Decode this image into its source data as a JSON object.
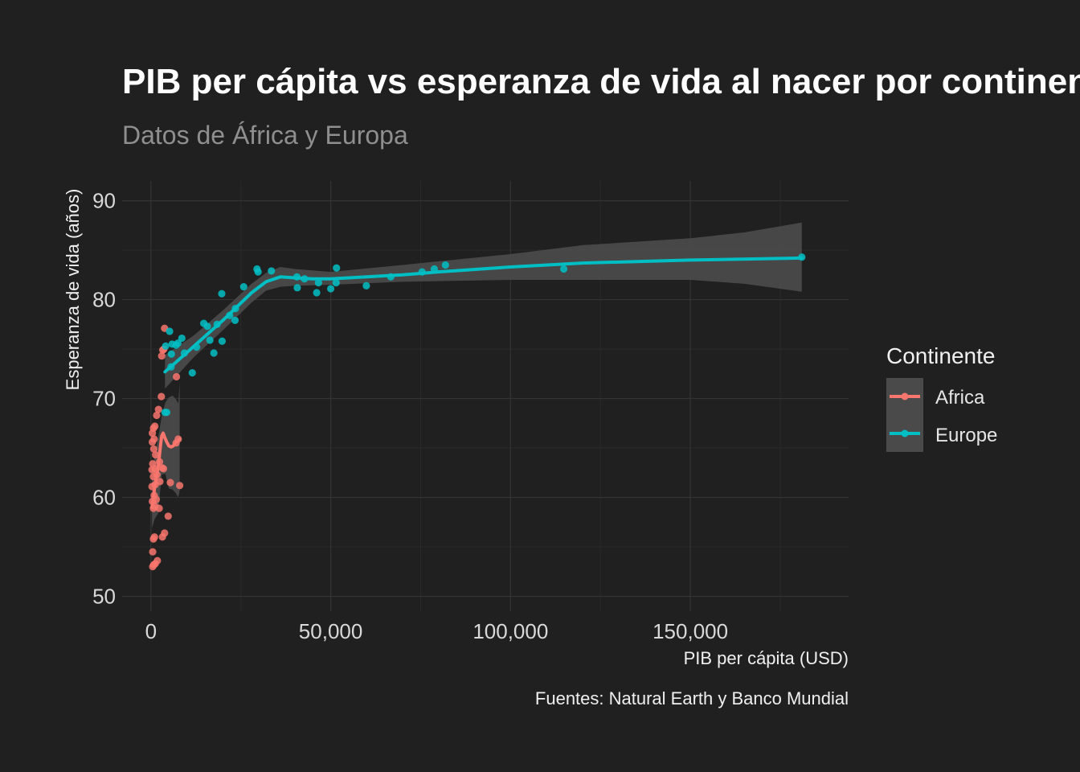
{
  "chart_data": {
    "type": "scatter",
    "title": "PIB per cápita vs esperanza de vida al nacer por continente",
    "subtitle": "Datos de África y Europa",
    "xlabel": "PIB per cápita  (USD)",
    "ylabel": "Esperanza de vida (años)",
    "caption": "Fuentes: Natural Earth y Banco Mundial",
    "xlim": [
      -8000,
      194000
    ],
    "ylim": [
      48.5,
      92
    ],
    "x_ticks": [
      0,
      50000,
      100000,
      150000
    ],
    "x_tick_labels": [
      "0",
      "50,000",
      "100,000",
      "150,000"
    ],
    "y_ticks": [
      50,
      60,
      70,
      80,
      90
    ],
    "y_tick_labels": [
      "50",
      "60",
      "70",
      "80",
      "90"
    ],
    "grid": true,
    "legend": {
      "title": "Continente",
      "position": "right",
      "entries": [
        "Africa",
        "Europe"
      ]
    },
    "series": [
      {
        "name": "Africa",
        "color": "#f8766d",
        "points": [
          [
            500,
            53.0
          ],
          [
            800,
            53.2
          ],
          [
            1200,
            53.3
          ],
          [
            1800,
            53.6
          ],
          [
            500,
            54.5
          ],
          [
            700,
            55.8
          ],
          [
            1000,
            56.0
          ],
          [
            3200,
            56.0
          ],
          [
            3800,
            56.4
          ],
          [
            4800,
            58.1
          ],
          [
            700,
            58.9
          ],
          [
            1100,
            59.1
          ],
          [
            2300,
            58.9
          ],
          [
            400,
            59.6
          ],
          [
            1500,
            59.8
          ],
          [
            900,
            60.2
          ],
          [
            300,
            61.1
          ],
          [
            1200,
            61.3
          ],
          [
            2500,
            61.6
          ],
          [
            700,
            62.1
          ],
          [
            5400,
            61.5
          ],
          [
            8000,
            61.2
          ],
          [
            1700,
            62.3
          ],
          [
            300,
            62.8
          ],
          [
            1100,
            62.9
          ],
          [
            3100,
            63.0
          ],
          [
            3500,
            62.9
          ],
          [
            500,
            63.4
          ],
          [
            2400,
            63.6
          ],
          [
            1300,
            64.3
          ],
          [
            800,
            64.9
          ],
          [
            400,
            65.6
          ],
          [
            7000,
            65.5
          ],
          [
            900,
            65.9
          ],
          [
            7600,
            65.9
          ],
          [
            400,
            66.5
          ],
          [
            1100,
            67.2
          ],
          [
            700,
            67.0
          ],
          [
            1600,
            68.3
          ],
          [
            2100,
            68.9
          ],
          [
            2900,
            70.2
          ],
          [
            3000,
            74.3
          ],
          [
            3300,
            74.9
          ],
          [
            3600,
            75.0
          ],
          [
            3800,
            77.1
          ],
          [
            7100,
            72.2
          ]
        ]
      },
      {
        "name": "Europe",
        "color": "#00bfc4",
        "points": [
          [
            3900,
            68.6
          ],
          [
            4400,
            68.6
          ],
          [
            5600,
            73.2
          ],
          [
            4100,
            75.3
          ],
          [
            5200,
            76.8
          ],
          [
            5900,
            75.5
          ],
          [
            7000,
            75.4
          ],
          [
            8600,
            76.1
          ],
          [
            7500,
            75.6
          ],
          [
            5700,
            74.5
          ],
          [
            9300,
            74.6
          ],
          [
            11500,
            72.6
          ],
          [
            12700,
            75.2
          ],
          [
            14700,
            77.6
          ],
          [
            15700,
            77.3
          ],
          [
            16400,
            75.9
          ],
          [
            17500,
            74.6
          ],
          [
            18400,
            77.5
          ],
          [
            19700,
            80.6
          ],
          [
            19800,
            75.8
          ],
          [
            21900,
            78.4
          ],
          [
            23500,
            79.1
          ],
          [
            23400,
            77.9
          ],
          [
            25800,
            81.3
          ],
          [
            29500,
            83.1
          ],
          [
            29800,
            82.8
          ],
          [
            33500,
            82.9
          ],
          [
            40600,
            82.3
          ],
          [
            40700,
            81.2
          ],
          [
            42700,
            82.1
          ],
          [
            46100,
            80.7
          ],
          [
            46600,
            81.7
          ],
          [
            50000,
            81.1
          ],
          [
            51500,
            81.7
          ],
          [
            51600,
            83.2
          ],
          [
            59900,
            81.4
          ],
          [
            66700,
            82.3
          ],
          [
            75400,
            82.8
          ],
          [
            78800,
            83.1
          ],
          [
            81900,
            83.5
          ],
          [
            114800,
            83.1
          ],
          [
            181000,
            84.3
          ]
        ]
      }
    ],
    "smooth": [
      {
        "name": "Africa",
        "color": "#f8766d",
        "line": [
          [
            300,
            59.0
          ],
          [
            600,
            59.8
          ],
          [
            1000,
            60.9
          ],
          [
            1400,
            61.8
          ],
          [
            1800,
            62.6
          ],
          [
            2200,
            63.6
          ],
          [
            2600,
            65.0
          ],
          [
            3000,
            66.2
          ],
          [
            3400,
            66.5
          ],
          [
            3800,
            66.1
          ],
          [
            4400,
            65.6
          ],
          [
            5000,
            65.2
          ],
          [
            5600,
            65.1
          ],
          [
            6200,
            65.2
          ],
          [
            6800,
            65.5
          ],
          [
            7400,
            65.7
          ],
          [
            8000,
            65.9
          ]
        ],
        "upper": [
          [
            300,
            63.1
          ],
          [
            1000,
            64.0
          ],
          [
            2000,
            66.0
          ],
          [
            3000,
            68.2
          ],
          [
            4000,
            69.6
          ],
          [
            5000,
            70.1
          ],
          [
            6000,
            70.3
          ],
          [
            7000,
            69.9
          ],
          [
            7600,
            69.5
          ],
          [
            8000,
            71.6
          ]
        ],
        "lower": [
          [
            300,
            56.9
          ],
          [
            1000,
            57.8
          ],
          [
            2000,
            58.4
          ],
          [
            3000,
            62.3
          ],
          [
            4000,
            62.4
          ],
          [
            5000,
            60.9
          ],
          [
            6000,
            60.8
          ],
          [
            7000,
            60.4
          ],
          [
            7600,
            60.0
          ],
          [
            8000,
            60.7
          ]
        ]
      },
      {
        "name": "Europe",
        "color": "#00bfc4",
        "line": [
          [
            3900,
            72.7
          ],
          [
            8000,
            74.0
          ],
          [
            12000,
            75.3
          ],
          [
            16000,
            76.6
          ],
          [
            20000,
            77.9
          ],
          [
            24000,
            79.3
          ],
          [
            28000,
            80.7
          ],
          [
            32000,
            81.8
          ],
          [
            36000,
            82.3
          ],
          [
            40000,
            82.2
          ],
          [
            45000,
            82.1
          ],
          [
            50000,
            82.1
          ],
          [
            60000,
            82.3
          ],
          [
            70000,
            82.5
          ],
          [
            80000,
            82.8
          ],
          [
            100000,
            83.3
          ],
          [
            120000,
            83.7
          ],
          [
            150000,
            84.0
          ],
          [
            181000,
            84.2
          ]
        ],
        "upper": [
          [
            3900,
            74.4
          ],
          [
            12000,
            76.4
          ],
          [
            20000,
            78.9
          ],
          [
            28000,
            81.6
          ],
          [
            32000,
            82.7
          ],
          [
            36000,
            83.3
          ],
          [
            40000,
            83.1
          ],
          [
            50000,
            82.8
          ],
          [
            70000,
            83.5
          ],
          [
            100000,
            84.6
          ],
          [
            120000,
            85.5
          ],
          [
            150000,
            86.2
          ],
          [
            165000,
            86.8
          ],
          [
            181000,
            87.8
          ]
        ],
        "lower": [
          [
            3900,
            71.0
          ],
          [
            12000,
            74.2
          ],
          [
            20000,
            76.9
          ],
          [
            28000,
            79.7
          ],
          [
            32000,
            80.9
          ],
          [
            36000,
            81.3
          ],
          [
            40000,
            81.4
          ],
          [
            50000,
            81.5
          ],
          [
            70000,
            81.8
          ],
          [
            100000,
            82.0
          ],
          [
            120000,
            82.0
          ],
          [
            150000,
            82.0
          ],
          [
            165000,
            81.6
          ],
          [
            181000,
            80.8
          ]
        ]
      }
    ]
  }
}
